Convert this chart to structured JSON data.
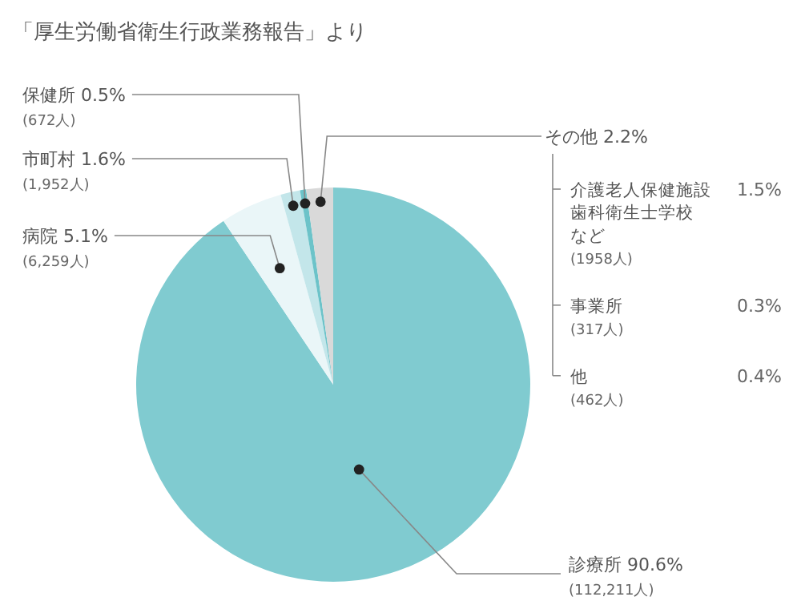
{
  "chart_data": {
    "type": "pie",
    "title": "「厚生労働省衛生行政業務報告」より",
    "categories": [
      "診療所",
      "病院",
      "市町村",
      "保健所",
      "その他"
    ],
    "values": [
      90.6,
      5.1,
      1.6,
      0.5,
      2.2
    ],
    "colors": [
      "#80cbd0",
      "#eaf6f8",
      "#c3e6ea",
      "#6cc3c9",
      "#d9d9d9"
    ],
    "value_labels": [
      "90.6%",
      "5.1%",
      "1.6%",
      "0.5%",
      "2.2%"
    ],
    "annotations": [
      "(112,211人)",
      "(6,259人)",
      "(1,952人)",
      "(672人)",
      null,
      "介護老人保健施設",
      "歯科衛生士学校",
      "など",
      "1.5%",
      "(1958人)",
      null,
      "事業所",
      "0.3%",
      "(317人)",
      null,
      "他",
      "0.4%",
      "(462人)"
    ]
  }
}
